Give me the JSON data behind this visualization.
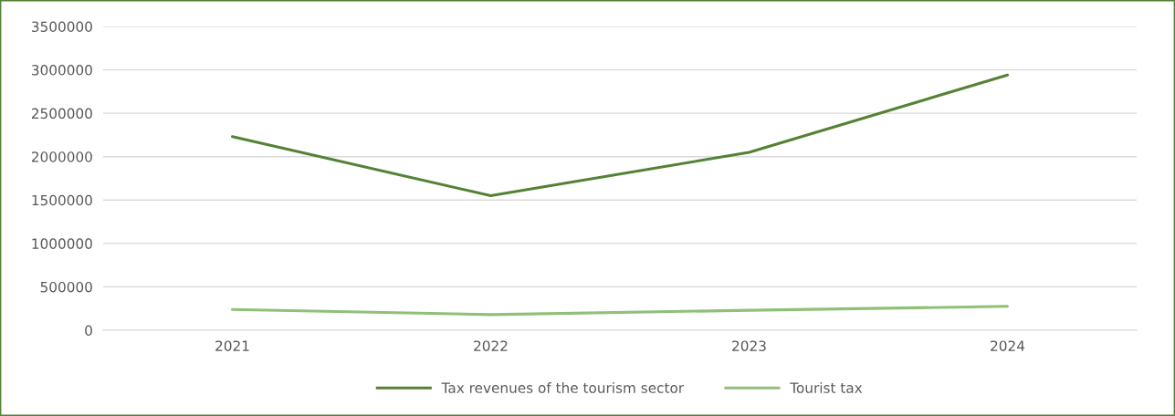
{
  "chart_data": {
    "type": "line",
    "categories": [
      "2021",
      "2022",
      "2023",
      "2024"
    ],
    "series": [
      {
        "name": "Tax revenues of the tourism sector",
        "color": "#548235",
        "values": [
          2230000,
          1550000,
          2050000,
          2940000
        ]
      },
      {
        "name": "Tourist tax",
        "color": "#8fc078",
        "values": [
          240000,
          180000,
          230000,
          275000
        ]
      }
    ],
    "ylim": [
      0,
      3500000
    ],
    "yticks": [
      0,
      500000,
      1000000,
      1500000,
      2000000,
      2500000,
      3000000,
      3500000
    ],
    "grid": "y",
    "legend": "bottom",
    "marker": "none",
    "line_style": "solid"
  }
}
